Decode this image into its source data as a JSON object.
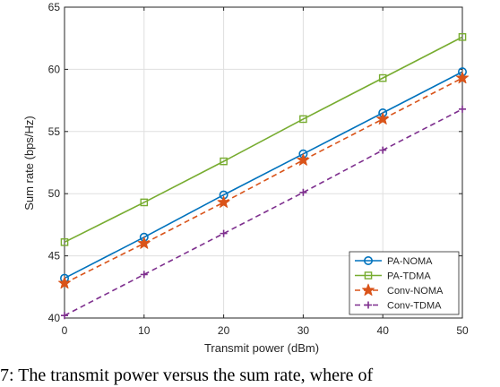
{
  "chart_data": {
    "type": "line",
    "title": "",
    "xlabel": "Transmit power (dBm)",
    "ylabel": "Sum rate (bps/Hz)",
    "xlim": [
      0,
      50
    ],
    "ylim": [
      40,
      65
    ],
    "xticks": [
      0,
      10,
      20,
      30,
      40,
      50
    ],
    "yticks": [
      40,
      45,
      50,
      55,
      60,
      65
    ],
    "grid": true,
    "legend_position": "bottom-right",
    "x": [
      0,
      10,
      20,
      30,
      40,
      50
    ],
    "series": [
      {
        "name": "PA-NOMA",
        "values": [
          43.2,
          46.5,
          49.9,
          53.2,
          56.5,
          59.8
        ],
        "color": "#0072BD",
        "line_style": "solid",
        "marker": "circle"
      },
      {
        "name": "PA-TDMA",
        "values": [
          46.1,
          49.3,
          52.6,
          56.0,
          59.3,
          62.6
        ],
        "color": "#77AC30",
        "line_style": "solid",
        "marker": "square"
      },
      {
        "name": "Conv-NOMA",
        "values": [
          42.8,
          46.0,
          49.3,
          52.7,
          56.0,
          59.3
        ],
        "color": "#D95319",
        "line_style": "dashed",
        "marker": "star"
      },
      {
        "name": "Conv-TDMA",
        "values": [
          40.2,
          43.5,
          46.8,
          50.1,
          53.5,
          56.8
        ],
        "color": "#7E2F8E",
        "line_style": "dashed",
        "marker": "plus"
      }
    ]
  },
  "caption": {
    "text": "7: The transmit power versus the sum rate, where of"
  }
}
